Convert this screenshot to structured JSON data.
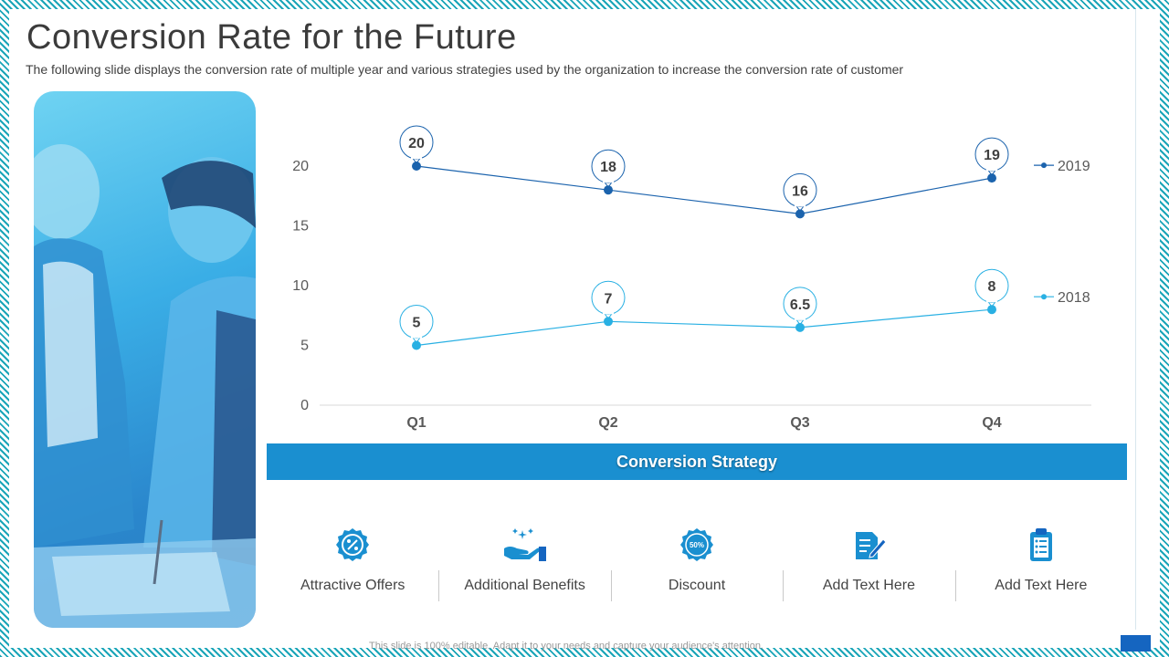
{
  "slide": {
    "title": "Conversion Rate for the Future",
    "subtitle": "The following slide displays the conversion rate of multiple year and various strategies used by the organization to increase the conversion rate of customer",
    "footer": "This slide is 100% editable. Adapt it to your needs and capture your audience's attention."
  },
  "chart_data": {
    "type": "line",
    "categories": [
      "Q1",
      "Q2",
      "Q3",
      "Q4"
    ],
    "series": [
      {
        "name": "2019",
        "values": [
          20,
          18,
          16,
          19
        ],
        "color": "#1b63ad"
      },
      {
        "name": "2018",
        "values": [
          5,
          7,
          6.5,
          8
        ],
        "color": "#29b0e3"
      }
    ],
    "ylim": [
      0,
      20
    ],
    "yticks": [
      0,
      5,
      10,
      15,
      20
    ],
    "grid": false,
    "legend": "right"
  },
  "strategy": {
    "heading": "Conversion Strategy",
    "items": [
      {
        "label": "Attractive Offers",
        "icon": "percent-badge-icon"
      },
      {
        "label": "Additional Benefits",
        "icon": "hand-sparkles-icon"
      },
      {
        "label": "Discount",
        "icon": "discount-badge-icon",
        "badge_text": "50%"
      },
      {
        "label": "Add Text Here",
        "icon": "document-edit-icon"
      },
      {
        "label": "Add Text Here",
        "icon": "clipboard-list-icon"
      }
    ]
  },
  "colors": {
    "accent": "#1a8fd0",
    "series_2019": "#1b63ad",
    "series_2018": "#29b0e3",
    "icon": "#1a8fd0"
  }
}
